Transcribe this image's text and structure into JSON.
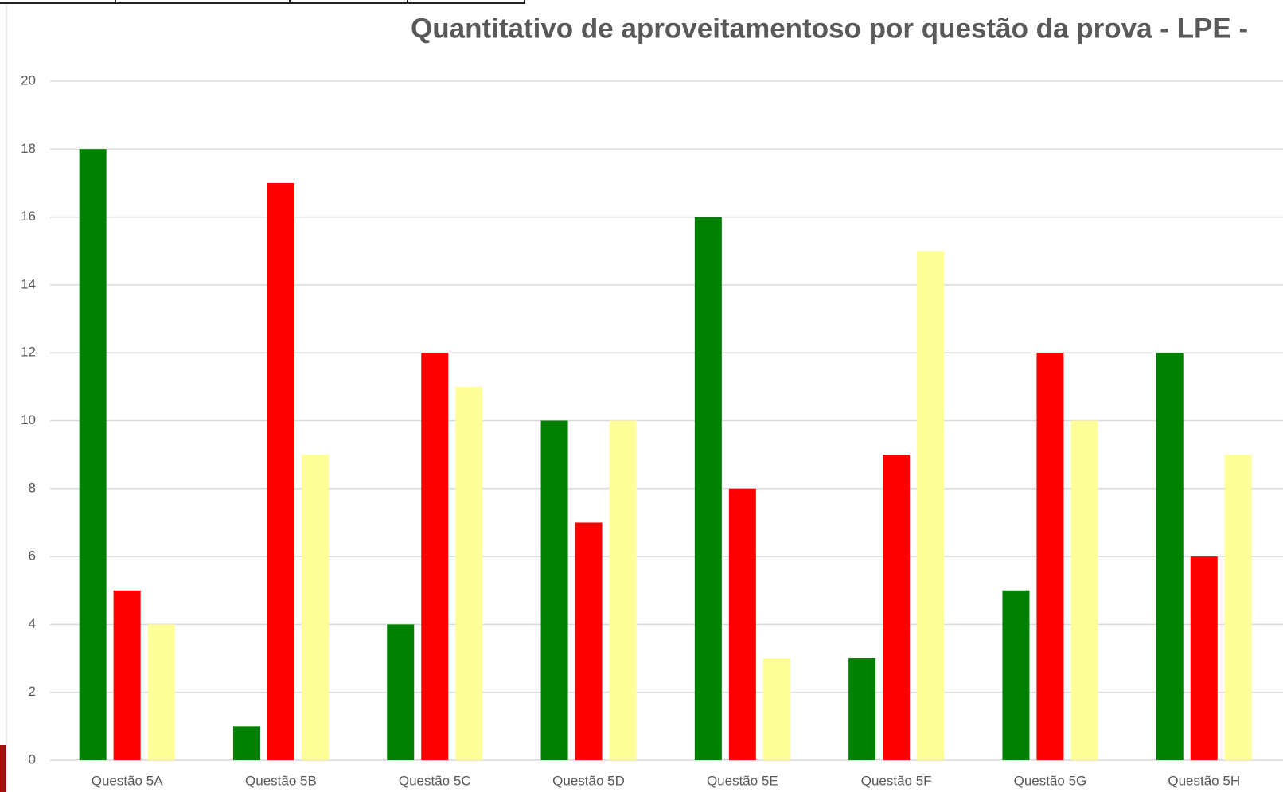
{
  "chart_data": {
    "type": "bar",
    "title": "Quantitativo de aproveitamentoso por questão da prova  - LPE -",
    "categories": [
      "Questão 5A",
      "Questão 5B",
      "Questão 5C",
      "Questão 5D",
      "Questão 5E",
      "Questão 5F",
      "Questão 5G",
      "Questão 5H"
    ],
    "series": [
      {
        "color": "#008000",
        "values": [
          18,
          1,
          4,
          10,
          16,
          3,
          5,
          12
        ]
      },
      {
        "color": "#ff0000",
        "values": [
          5,
          17,
          12,
          7,
          8,
          9,
          12,
          6
        ]
      },
      {
        "color": "#ffff99",
        "values": [
          4,
          9,
          11,
          10,
          3,
          15,
          10,
          9
        ]
      }
    ],
    "ylim": [
      0,
      20
    ],
    "yticks": [
      0,
      2,
      4,
      6,
      8,
      10,
      12,
      14,
      16,
      18,
      20
    ],
    "grid": true
  }
}
